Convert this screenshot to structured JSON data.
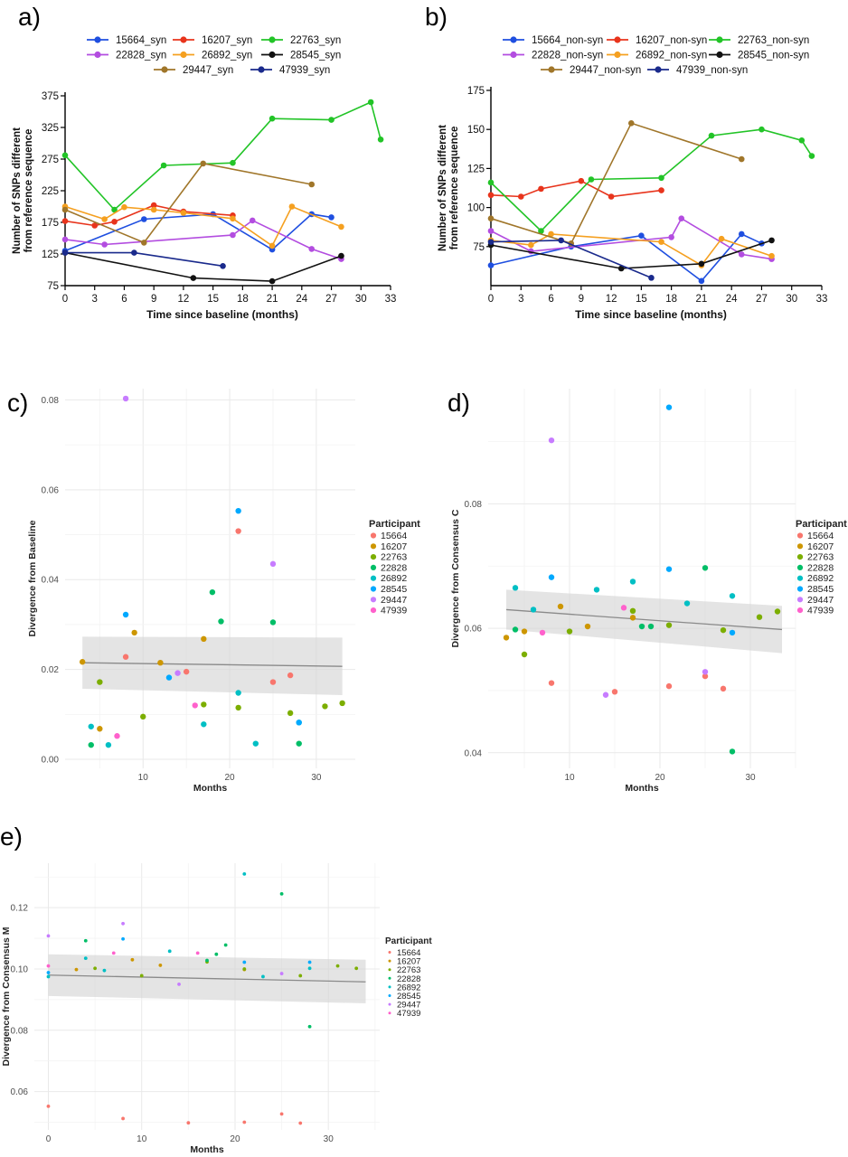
{
  "palette": {
    "15664": "#1f4fe0",
    "16207": "#e8341c",
    "22763": "#22c427",
    "22828": "#b34de0",
    "26892": "#f5a020",
    "28545": "#111111",
    "29447": "#a0762a",
    "47939": "#1a2a8c"
  },
  "ggpalette": {
    "15664": "#F8766D",
    "16207": "#CD9600",
    "22763": "#7CAE00",
    "22828": "#00BE67",
    "26892": "#00BFC4",
    "28545": "#00A9FF",
    "29447": "#C77CFF",
    "47939": "#FF61CC"
  },
  "chart_data": [
    {
      "panel": "a)",
      "type": "line",
      "xlabel": "Time since baseline (months)",
      "ylabel": "Number of SNPs different from reference sequence",
      "xlim": [
        0,
        33
      ],
      "ylim": [
        75,
        375
      ],
      "xticks": [
        0,
        3,
        6,
        9,
        12,
        15,
        18,
        21,
        24,
        27,
        30,
        33
      ],
      "yticks": [
        75,
        125,
        175,
        225,
        275,
        325,
        375
      ],
      "legend": "top",
      "series": [
        {
          "name": "15664_syn",
          "key": "15664",
          "x": [
            0,
            8,
            15,
            21,
            25,
            27
          ],
          "y": [
            130,
            180,
            188,
            132,
            188,
            183
          ]
        },
        {
          "name": "16207_syn",
          "key": "16207",
          "x": [
            0,
            3,
            5,
            9,
            12,
            17
          ],
          "y": [
            177,
            170,
            176,
            202,
            192,
            186
          ]
        },
        {
          "name": "22763_syn",
          "key": "22763",
          "x": [
            0,
            5,
            10,
            17,
            21,
            27,
            31,
            32
          ],
          "y": [
            281,
            195,
            265,
            269,
            339,
            337,
            365,
            306
          ]
        },
        {
          "name": "22828_syn",
          "key": "22828",
          "x": [
            0,
            4,
            17,
            19,
            25,
            28
          ],
          "y": [
            148,
            140,
            155,
            178,
            133,
            117
          ]
        },
        {
          "name": "26892_syn",
          "key": "26892",
          "x": [
            0,
            4,
            6,
            9,
            12,
            17,
            21,
            23,
            28
          ],
          "y": [
            200,
            180,
            199,
            195,
            190,
            181,
            138,
            200,
            168
          ]
        },
        {
          "name": "28545_syn",
          "key": "28545",
          "x": [
            0,
            13,
            21,
            28
          ],
          "y": [
            127,
            87,
            82,
            122
          ]
        },
        {
          "name": "29447_syn",
          "key": "29447",
          "x": [
            0,
            8,
            14,
            25
          ],
          "y": [
            195,
            143,
            268,
            235
          ]
        },
        {
          "name": "47939_syn",
          "key": "47939",
          "x": [
            0,
            7,
            16
          ],
          "y": [
            127,
            127,
            106
          ]
        }
      ]
    },
    {
      "panel": "b)",
      "type": "line",
      "xlabel": "Time since baseline (months)",
      "ylabel": "Number of SNPs different from reference sequence",
      "xlim": [
        0,
        33
      ],
      "ylim": [
        50,
        175
      ],
      "xticks": [
        0,
        3,
        6,
        9,
        12,
        15,
        18,
        21,
        24,
        27,
        30,
        33
      ],
      "yticks": [
        75,
        100,
        125,
        150,
        175
      ],
      "legend": "top",
      "series": [
        {
          "name": "15664_non-syn",
          "key": "15664",
          "x": [
            0,
            8,
            15,
            21,
            25,
            27
          ],
          "y": [
            63,
            75,
            82,
            53,
            83,
            77
          ]
        },
        {
          "name": "16207_non-syn",
          "key": "16207",
          "x": [
            0,
            3,
            5,
            9,
            12,
            17
          ],
          "y": [
            108,
            107,
            112,
            117,
            107,
            111
          ]
        },
        {
          "name": "22763_non-syn",
          "key": "22763",
          "x": [
            0,
            5,
            10,
            17,
            22,
            27,
            31,
            32
          ],
          "y": [
            116,
            85,
            118,
            119,
            146,
            150,
            143,
            133
          ]
        },
        {
          "name": "22828_non-syn",
          "key": "22828",
          "x": [
            0,
            4,
            18,
            19,
            25,
            28
          ],
          "y": [
            85,
            72,
            81,
            93,
            70,
            67
          ]
        },
        {
          "name": "26892_non-syn",
          "key": "26892",
          "x": [
            0,
            4,
            6,
            17,
            21,
            23,
            28
          ],
          "y": [
            79,
            76,
            83,
            78,
            63,
            80,
            69
          ]
        },
        {
          "name": "28545_non-syn",
          "key": "28545",
          "x": [
            0,
            13,
            21,
            28
          ],
          "y": [
            76,
            61,
            64,
            79
          ]
        },
        {
          "name": "29447_non-syn",
          "key": "29447",
          "x": [
            0,
            8,
            14,
            25
          ],
          "y": [
            93,
            77,
            154,
            131
          ]
        },
        {
          "name": "47939_non-syn",
          "key": "47939",
          "x": [
            0,
            7,
            16
          ],
          "y": [
            78,
            79,
            55
          ]
        }
      ]
    },
    {
      "panel": "c)",
      "type": "scatter",
      "xlabel": "Months",
      "ylabel": "Divergence from Baseline",
      "xlim": [
        1,
        34.5
      ],
      "ylim": [
        -0.002,
        0.0825
      ],
      "xticks": [
        10,
        20,
        30
      ],
      "yticks": [
        0.0,
        0.02,
        0.04,
        0.06,
        0.08
      ],
      "ytick_labels": [
        "0.00",
        "0.02",
        "0.04",
        "0.06",
        "0.08"
      ],
      "grid": true,
      "legend": "right",
      "legend_title": "Participant",
      "legend_entries": [
        "15664",
        "16207",
        "22763",
        "22828",
        "26892",
        "28545",
        "29447",
        "47939"
      ],
      "trend": {
        "x": [
          3,
          33
        ],
        "y": [
          0.0215,
          0.0207
        ],
        "band_lo": [
          0.0157,
          0.0143
        ],
        "band_hi": [
          0.0273,
          0.0271
        ]
      },
      "points": [
        {
          "key": "15664",
          "x": 8,
          "y": 0.0228
        },
        {
          "key": "15664",
          "x": 15,
          "y": 0.0195
        },
        {
          "key": "15664",
          "x": 21,
          "y": 0.0508
        },
        {
          "key": "15664",
          "x": 25,
          "y": 0.0172
        },
        {
          "key": "15664",
          "x": 27,
          "y": 0.0187
        },
        {
          "key": "16207",
          "x": 3,
          "y": 0.0217
        },
        {
          "key": "16207",
          "x": 5,
          "y": 0.0068
        },
        {
          "key": "16207",
          "x": 9,
          "y": 0.0282
        },
        {
          "key": "16207",
          "x": 12,
          "y": 0.0215
        },
        {
          "key": "16207",
          "x": 17,
          "y": 0.0268
        },
        {
          "key": "22763",
          "x": 5,
          "y": 0.0172
        },
        {
          "key": "22763",
          "x": 10,
          "y": 0.0095
        },
        {
          "key": "22763",
          "x": 17,
          "y": 0.0122
        },
        {
          "key": "22763",
          "x": 21,
          "y": 0.0115
        },
        {
          "key": "22763",
          "x": 27,
          "y": 0.0103
        },
        {
          "key": "22763",
          "x": 31,
          "y": 0.0118
        },
        {
          "key": "22763",
          "x": 33,
          "y": 0.0125
        },
        {
          "key": "22828",
          "x": 4,
          "y": 0.0032
        },
        {
          "key": "22828",
          "x": 18,
          "y": 0.0372
        },
        {
          "key": "22828",
          "x": 19,
          "y": 0.0307
        },
        {
          "key": "22828",
          "x": 25,
          "y": 0.0305
        },
        {
          "key": "22828",
          "x": 28,
          "y": 0.0035
        },
        {
          "key": "26892",
          "x": 4,
          "y": 0.0073
        },
        {
          "key": "26892",
          "x": 6,
          "y": 0.0032
        },
        {
          "key": "26892",
          "x": 17,
          "y": 0.0078
        },
        {
          "key": "26892",
          "x": 21,
          "y": 0.0148
        },
        {
          "key": "26892",
          "x": 23,
          "y": 0.0035
        },
        {
          "key": "26892",
          "x": 28,
          "y": 0.0082
        },
        {
          "key": "28545",
          "x": 8,
          "y": 0.0322
        },
        {
          "key": "28545",
          "x": 13,
          "y": 0.0182
        },
        {
          "key": "28545",
          "x": 21,
          "y": 0.0553
        },
        {
          "key": "28545",
          "x": 28,
          "y": 0.0082
        },
        {
          "key": "29447",
          "x": 8,
          "y": 0.0803
        },
        {
          "key": "29447",
          "x": 14,
          "y": 0.0192
        },
        {
          "key": "29447",
          "x": 25,
          "y": 0.0435
        },
        {
          "key": "47939",
          "x": 7,
          "y": 0.0052
        },
        {
          "key": "47939",
          "x": 16,
          "y": 0.012
        }
      ]
    },
    {
      "panel": "d)",
      "type": "scatter",
      "xlabel": "Months",
      "ylabel": "Divergence from Consensus C",
      "xlim": [
        1,
        35
      ],
      "ylim": [
        0.0375,
        0.0985
      ],
      "xticks": [
        10,
        20,
        30
      ],
      "yticks": [
        0.04,
        0.06,
        0.08
      ],
      "ytick_labels": [
        "0.04",
        "0.06",
        "0.08"
      ],
      "grid": true,
      "legend": "right",
      "legend_title": "Participant",
      "legend_entries": [
        "15664",
        "16207",
        "22763",
        "22828",
        "26892",
        "28545",
        "29447",
        "47939"
      ],
      "trend": {
        "x": [
          3,
          33.5
        ],
        "y": [
          0.063,
          0.0598
        ],
        "band_lo": [
          0.0598,
          0.056
        ],
        "band_hi": [
          0.0662,
          0.0636
        ]
      },
      "points": [
        {
          "key": "15664",
          "x": 8,
          "y": 0.0512
        },
        {
          "key": "15664",
          "x": 15,
          "y": 0.0498
        },
        {
          "key": "15664",
          "x": 21,
          "y": 0.0507
        },
        {
          "key": "15664",
          "x": 25,
          "y": 0.0523
        },
        {
          "key": "15664",
          "x": 27,
          "y": 0.0503
        },
        {
          "key": "16207",
          "x": 3,
          "y": 0.0585
        },
        {
          "key": "16207",
          "x": 5,
          "y": 0.0595
        },
        {
          "key": "16207",
          "x": 9,
          "y": 0.0635
        },
        {
          "key": "16207",
          "x": 12,
          "y": 0.0603
        },
        {
          "key": "16207",
          "x": 17,
          "y": 0.0617
        },
        {
          "key": "22763",
          "x": 5,
          "y": 0.0558
        },
        {
          "key": "22763",
          "x": 10,
          "y": 0.0595
        },
        {
          "key": "22763",
          "x": 17,
          "y": 0.0628
        },
        {
          "key": "22763",
          "x": 21,
          "y": 0.0605
        },
        {
          "key": "22763",
          "x": 27,
          "y": 0.0597
        },
        {
          "key": "22763",
          "x": 31,
          "y": 0.0618
        },
        {
          "key": "22763",
          "x": 33,
          "y": 0.0627
        },
        {
          "key": "22828",
          "x": 4,
          "y": 0.0598
        },
        {
          "key": "22828",
          "x": 18,
          "y": 0.0603
        },
        {
          "key": "22828",
          "x": 19,
          "y": 0.0603
        },
        {
          "key": "22828",
          "x": 25,
          "y": 0.0697
        },
        {
          "key": "22828",
          "x": 28,
          "y": 0.0402
        },
        {
          "key": "26892",
          "x": 4,
          "y": 0.0665
        },
        {
          "key": "26892",
          "x": 6,
          "y": 0.063
        },
        {
          "key": "26892",
          "x": 13,
          "y": 0.0662
        },
        {
          "key": "26892",
          "x": 17,
          "y": 0.0675
        },
        {
          "key": "26892",
          "x": 23,
          "y": 0.064
        },
        {
          "key": "26892",
          "x": 28,
          "y": 0.0652
        },
        {
          "key": "28545",
          "x": 8,
          "y": 0.0682
        },
        {
          "key": "28545",
          "x": 21,
          "y": 0.0955
        },
        {
          "key": "28545",
          "x": 21,
          "y": 0.0695
        },
        {
          "key": "28545",
          "x": 28,
          "y": 0.0593
        },
        {
          "key": "29447",
          "x": 8,
          "y": 0.0902
        },
        {
          "key": "29447",
          "x": 14,
          "y": 0.0493
        },
        {
          "key": "29447",
          "x": 25,
          "y": 0.053
        },
        {
          "key": "47939",
          "x": 7,
          "y": 0.0593
        },
        {
          "key": "47939",
          "x": 16,
          "y": 0.0633
        }
      ]
    },
    {
      "panel": "e)",
      "type": "scatter",
      "xlabel": "Months",
      "ylabel": "Divergence from Consensus M",
      "xlim": [
        -1.5,
        35.5
      ],
      "ylim": [
        0.0475,
        0.1345
      ],
      "xticks": [
        0,
        10,
        20,
        30
      ],
      "yticks": [
        0.06,
        0.08,
        0.1,
        0.12
      ],
      "ytick_labels": [
        "0.06",
        "0.08",
        "0.10",
        "0.12"
      ],
      "grid": true,
      "legend": "right",
      "legend_title": "Participant",
      "legend_entries": [
        "15664",
        "16207",
        "22763",
        "22828",
        "26892",
        "28545",
        "29447",
        "47939"
      ],
      "trend": {
        "x": [
          0,
          34
        ],
        "y": [
          0.098,
          0.0958
        ],
        "band_lo": [
          0.0912,
          0.0888
        ],
        "band_hi": [
          0.1048,
          0.103
        ]
      },
      "points": [
        {
          "key": "15664",
          "x": 0,
          "y": 0.0552
        },
        {
          "key": "15664",
          "x": 8,
          "y": 0.0512
        },
        {
          "key": "15664",
          "x": 15,
          "y": 0.0498
        },
        {
          "key": "15664",
          "x": 21,
          "y": 0.05
        },
        {
          "key": "15664",
          "x": 25,
          "y": 0.0527
        },
        {
          "key": "15664",
          "x": 27,
          "y": 0.0497
        },
        {
          "key": "16207",
          "x": 3,
          "y": 0.0998
        },
        {
          "key": "16207",
          "x": 9,
          "y": 0.103
        },
        {
          "key": "16207",
          "x": 12,
          "y": 0.1012
        },
        {
          "key": "16207",
          "x": 21,
          "y": 0.0998
        },
        {
          "key": "22763",
          "x": 5,
          "y": 0.1002
        },
        {
          "key": "22763",
          "x": 10,
          "y": 0.0978
        },
        {
          "key": "22763",
          "x": 17,
          "y": 0.1023
        },
        {
          "key": "22763",
          "x": 21,
          "y": 0.1
        },
        {
          "key": "22763",
          "x": 27,
          "y": 0.0978
        },
        {
          "key": "22763",
          "x": 31,
          "y": 0.101
        },
        {
          "key": "22763",
          "x": 33,
          "y": 0.1002
        },
        {
          "key": "22828",
          "x": 4,
          "y": 0.1092
        },
        {
          "key": "22828",
          "x": 17,
          "y": 0.1028
        },
        {
          "key": "22828",
          "x": 18,
          "y": 0.1048
        },
        {
          "key": "22828",
          "x": 19,
          "y": 0.1078
        },
        {
          "key": "22828",
          "x": 25,
          "y": 0.1245
        },
        {
          "key": "22828",
          "x": 28,
          "y": 0.0812
        },
        {
          "key": "26892",
          "x": 0,
          "y": 0.0975
        },
        {
          "key": "26892",
          "x": 4,
          "y": 0.1035
        },
        {
          "key": "26892",
          "x": 6,
          "y": 0.0995
        },
        {
          "key": "26892",
          "x": 13,
          "y": 0.1058
        },
        {
          "key": "26892",
          "x": 21,
          "y": 0.131
        },
        {
          "key": "26892",
          "x": 23,
          "y": 0.0975
        },
        {
          "key": "26892",
          "x": 28,
          "y": 0.1002
        },
        {
          "key": "28545",
          "x": 0,
          "y": 0.0988
        },
        {
          "key": "28545",
          "x": 8,
          "y": 0.1098
        },
        {
          "key": "28545",
          "x": 21,
          "y": 0.1022
        },
        {
          "key": "28545",
          "x": 28,
          "y": 0.1022
        },
        {
          "key": "29447",
          "x": 0,
          "y": 0.1108
        },
        {
          "key": "29447",
          "x": 8,
          "y": 0.1148
        },
        {
          "key": "29447",
          "x": 14,
          "y": 0.095
        },
        {
          "key": "29447",
          "x": 25,
          "y": 0.0985
        },
        {
          "key": "47939",
          "x": 0,
          "y": 0.101
        },
        {
          "key": "47939",
          "x": 7,
          "y": 0.1052
        },
        {
          "key": "47939",
          "x": 16,
          "y": 0.1052
        }
      ]
    }
  ]
}
